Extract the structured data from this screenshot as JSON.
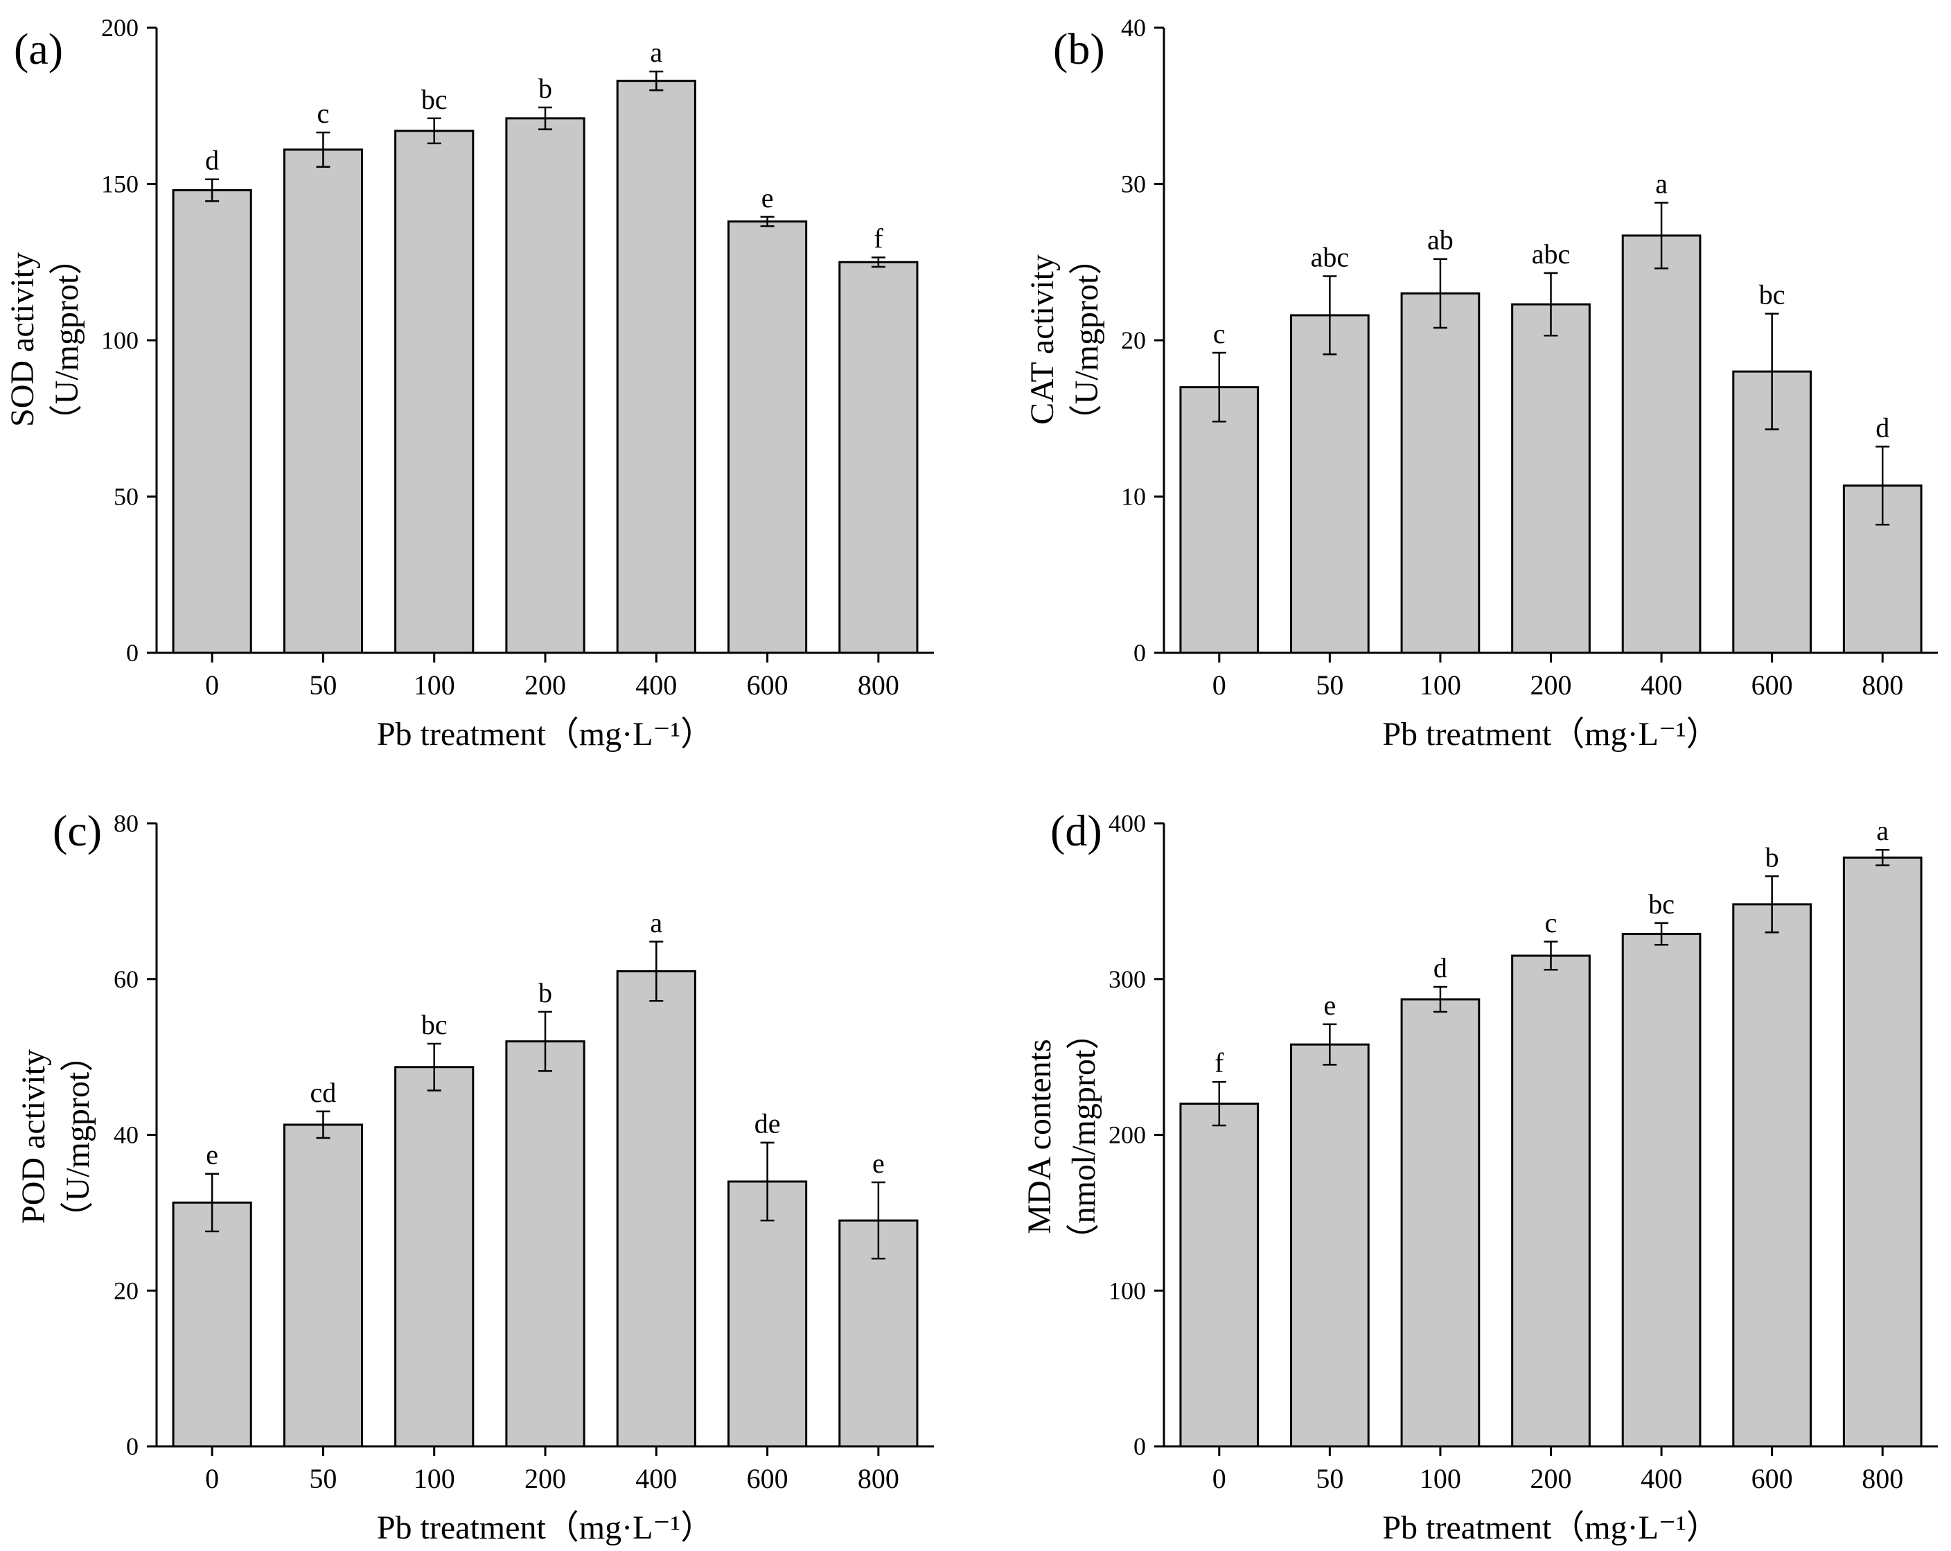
{
  "chart_data": [
    {
      "type": "bar",
      "panel": "(a)",
      "categories": [
        "0",
        "50",
        "100",
        "200",
        "400",
        "600",
        "800"
      ],
      "values": [
        148,
        161,
        167,
        171,
        183,
        138,
        125
      ],
      "errors": [
        3.5,
        5.5,
        4,
        3.5,
        3,
        1.5,
        1.5
      ],
      "significance": [
        "d",
        "c",
        "bc",
        "b",
        "a",
        "e",
        "f"
      ],
      "xlabel": "Pb treatment（mg·L⁻¹）",
      "ylabel": "SOD activity",
      "ylabel2": "（U/mgprot）",
      "ylim": [
        0,
        200
      ],
      "yticks": [
        0,
        50,
        100,
        150,
        200
      ],
      "grid": false
    },
    {
      "type": "bar",
      "panel": "(b)",
      "categories": [
        "0",
        "50",
        "100",
        "200",
        "400",
        "600",
        "800"
      ],
      "values": [
        17,
        21.6,
        23,
        22.3,
        26.7,
        18,
        10.7
      ],
      "errors": [
        2.2,
        2.5,
        2.2,
        2,
        2.1,
        3.7,
        2.5
      ],
      "significance": [
        "c",
        "abc",
        "ab",
        "abc",
        "a",
        "bc",
        "d"
      ],
      "xlabel": "Pb treatment（mg·L⁻¹）",
      "ylabel": "CAT activity",
      "ylabel2": "（U/mgprot）",
      "ylim": [
        0,
        40
      ],
      "yticks": [
        0,
        10,
        20,
        30,
        40
      ],
      "grid": false
    },
    {
      "type": "bar",
      "panel": "(c)",
      "categories": [
        "0",
        "50",
        "100",
        "200",
        "400",
        "600",
        "800"
      ],
      "values": [
        31.3,
        41.3,
        48.7,
        52,
        61,
        34,
        29
      ],
      "errors": [
        3.7,
        1.7,
        3,
        3.8,
        3.8,
        5,
        4.9
      ],
      "significance": [
        "e",
        "cd",
        "bc",
        "b",
        "a",
        "de",
        "e"
      ],
      "xlabel": "Pb treatment（mg·L⁻¹）",
      "ylabel": "POD activity",
      "ylabel2": "（U/mgprot）",
      "ylim": [
        0,
        80
      ],
      "yticks": [
        0,
        20,
        40,
        60,
        80
      ],
      "grid": false
    },
    {
      "type": "bar",
      "panel": "(d)",
      "categories": [
        "0",
        "50",
        "100",
        "200",
        "400",
        "600",
        "800"
      ],
      "values": [
        220,
        258,
        287,
        315,
        329,
        348,
        378
      ],
      "errors": [
        14,
        13,
        8,
        9,
        7,
        18,
        5
      ],
      "significance": [
        "f",
        "e",
        "d",
        "c",
        "bc",
        "b",
        "a"
      ],
      "xlabel": "Pb treatment（mg·L⁻¹）",
      "ylabel": "MDA contents",
      "ylabel2": "（nmol/mgprot）",
      "ylim": [
        0,
        400
      ],
      "yticks": [
        0,
        100,
        200,
        300,
        400
      ],
      "grid": false
    }
  ]
}
